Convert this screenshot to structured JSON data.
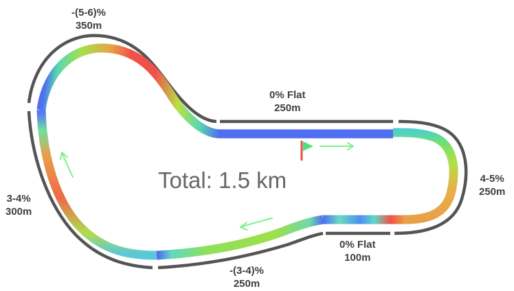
{
  "total": "Total: 1.5 km",
  "segments": [
    {
      "id": "top-descent",
      "grade": "-(5-6)%",
      "length": "350m"
    },
    {
      "id": "top-flat",
      "grade": "0% Flat",
      "length": "250m"
    },
    {
      "id": "right-climb",
      "grade": "4-5%",
      "length": "250m"
    },
    {
      "id": "bottom-flat",
      "grade": "0% Flat",
      "length": "100m"
    },
    {
      "id": "bottom-descent",
      "grade": "-(3-4)%",
      "length": "250m"
    },
    {
      "id": "left-climb",
      "grade": "3-4%",
      "length": "300m"
    }
  ],
  "colors": {
    "outline": "#545454",
    "flat": "#4f6ef0",
    "steep": "#f0524a",
    "moderate": "#e9a048",
    "gentle": "#9ee04a",
    "start_flag": "#4fe07a",
    "start_pole": "#ee4a4a",
    "direction_arrow": "#7ef08e"
  }
}
